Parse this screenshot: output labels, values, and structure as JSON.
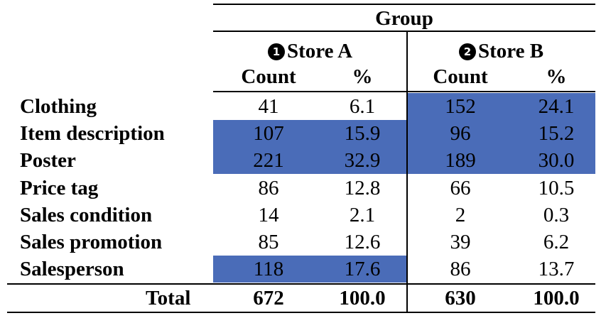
{
  "header": {
    "group": "Group",
    "store_a": {
      "badge": "1",
      "label": "Store A"
    },
    "store_b": {
      "badge": "2",
      "label": "Store B"
    },
    "count": "Count",
    "percent": "%"
  },
  "rows": [
    {
      "label": "Clothing",
      "a_count": "41",
      "a_pct": "6.1",
      "b_count": "152",
      "b_pct": "24.1"
    },
    {
      "label": "Item description",
      "a_count": "107",
      "a_pct": "15.9",
      "b_count": "96",
      "b_pct": "15.2"
    },
    {
      "label": "Poster",
      "a_count": "221",
      "a_pct": "32.9",
      "b_count": "189",
      "b_pct": "30.0"
    },
    {
      "label": "Price tag",
      "a_count": "86",
      "a_pct": "12.8",
      "b_count": "66",
      "b_pct": "10.5"
    },
    {
      "label": "Sales condition",
      "a_count": "14",
      "a_pct": "2.1",
      "b_count": "2",
      "b_pct": "0.3"
    },
    {
      "label": "Sales promotion",
      "a_count": "85",
      "a_pct": "12.6",
      "b_count": "39",
      "b_pct": "6.2"
    },
    {
      "label": "Salesperson",
      "a_count": "118",
      "a_pct": "17.6",
      "b_count": "86",
      "b_pct": "13.7"
    }
  ],
  "total": {
    "label": "Total",
    "a_count": "672",
    "a_pct": "100.0",
    "b_count": "630",
    "b_pct": "100.0"
  },
  "colors": {
    "highlight": "#4a6cb8"
  }
}
